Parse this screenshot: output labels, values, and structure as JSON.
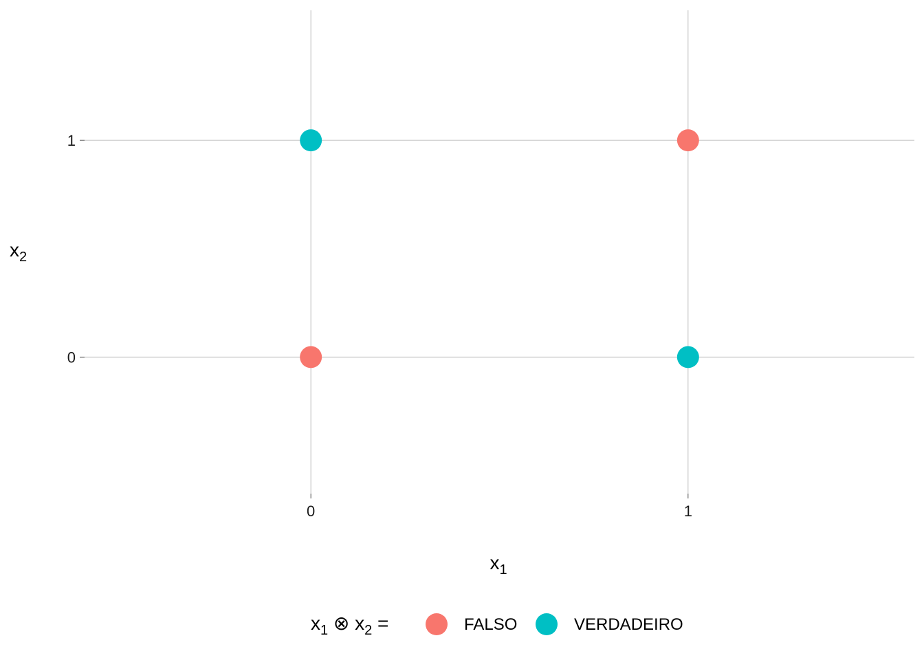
{
  "chart_data": {
    "type": "scatter",
    "title": "",
    "xlabel": {
      "base": "x",
      "sub": "1"
    },
    "ylabel": {
      "base": "x",
      "sub": "2"
    },
    "xlim": [
      -0.6,
      1.6
    ],
    "ylim": [
      -0.63,
      1.6
    ],
    "x_ticks": [
      0,
      1
    ],
    "y_ticks": [
      0,
      1
    ],
    "grid": true,
    "legend_position": "bottom",
    "legend_title": {
      "a": "x",
      "a_sub": "1",
      "op": "⊗",
      "b": "x",
      "b_sub": "2",
      "eq": "="
    },
    "series": [
      {
        "name": "FALSO",
        "color": "#F8766D",
        "points": [
          [
            0,
            0
          ],
          [
            1,
            1
          ]
        ]
      },
      {
        "name": "VERDADEIRO",
        "color": "#00BFC4",
        "points": [
          [
            0,
            1
          ],
          [
            1,
            0
          ]
        ]
      }
    ]
  }
}
